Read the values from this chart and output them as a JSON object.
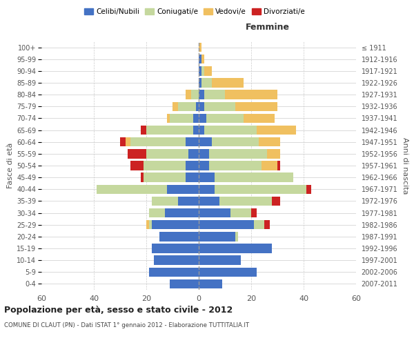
{
  "age_groups": [
    "0-4",
    "5-9",
    "10-14",
    "15-19",
    "20-24",
    "25-29",
    "30-34",
    "35-39",
    "40-44",
    "45-49",
    "50-54",
    "55-59",
    "60-64",
    "65-69",
    "70-74",
    "75-79",
    "80-84",
    "85-89",
    "90-94",
    "95-99",
    "100+"
  ],
  "birth_years": [
    "2007-2011",
    "2002-2006",
    "1997-2001",
    "1992-1996",
    "1987-1991",
    "1982-1986",
    "1977-1981",
    "1972-1976",
    "1967-1971",
    "1962-1966",
    "1957-1961",
    "1952-1956",
    "1947-1951",
    "1942-1946",
    "1937-1941",
    "1932-1936",
    "1927-1931",
    "1922-1926",
    "1917-1921",
    "1912-1916",
    "≤ 1911"
  ],
  "colors": {
    "celibi": "#4472c4",
    "coniugati": "#c5d89e",
    "vedovi": "#f0c060",
    "divorziati": "#cc2222"
  },
  "male": {
    "celibi": [
      11,
      19,
      17,
      18,
      15,
      18,
      13,
      8,
      12,
      5,
      5,
      4,
      5,
      2,
      2,
      1,
      0,
      0,
      0,
      0,
      0
    ],
    "coniugati": [
      0,
      0,
      0,
      0,
      0,
      1,
      6,
      10,
      27,
      16,
      16,
      16,
      21,
      18,
      9,
      7,
      3,
      0,
      0,
      0,
      0
    ],
    "vedovi": [
      0,
      0,
      0,
      0,
      0,
      1,
      0,
      0,
      0,
      0,
      0,
      0,
      2,
      0,
      1,
      2,
      2,
      0,
      0,
      0,
      0
    ],
    "divorziati": [
      0,
      0,
      0,
      0,
      0,
      0,
      0,
      0,
      0,
      1,
      5,
      7,
      2,
      2,
      0,
      0,
      0,
      0,
      0,
      0,
      0
    ]
  },
  "female": {
    "celibi": [
      9,
      22,
      16,
      28,
      14,
      21,
      12,
      8,
      6,
      6,
      4,
      4,
      5,
      2,
      3,
      2,
      2,
      1,
      1,
      1,
      0
    ],
    "coniugati": [
      0,
      0,
      0,
      0,
      1,
      4,
      8,
      20,
      35,
      30,
      20,
      22,
      18,
      20,
      14,
      12,
      8,
      4,
      1,
      0,
      0
    ],
    "vedovi": [
      0,
      0,
      0,
      0,
      0,
      0,
      0,
      0,
      0,
      0,
      6,
      5,
      8,
      15,
      12,
      16,
      20,
      12,
      3,
      1,
      1
    ],
    "divorziati": [
      0,
      0,
      0,
      0,
      0,
      2,
      2,
      3,
      2,
      0,
      1,
      0,
      0,
      0,
      0,
      0,
      0,
      0,
      0,
      0,
      0
    ]
  },
  "xlim": 60,
  "title": "Popolazione per età, sesso e stato civile - 2012",
  "subtitle": "COMUNE DI CLAUT (PN) - Dati ISTAT 1° gennaio 2012 - Elaborazione TUTTITALIA.IT",
  "ylabel_left": "Fasce di età",
  "ylabel_right": "Anni di nascita",
  "xlabel_right": "Femmine",
  "legend_labels": [
    "Celibi/Nubili",
    "Coniugati/e",
    "Vedovi/e",
    "Divorziati/e"
  ],
  "background_color": "#ffffff",
  "grid_color": "#cccccc",
  "text_color": "#555555"
}
